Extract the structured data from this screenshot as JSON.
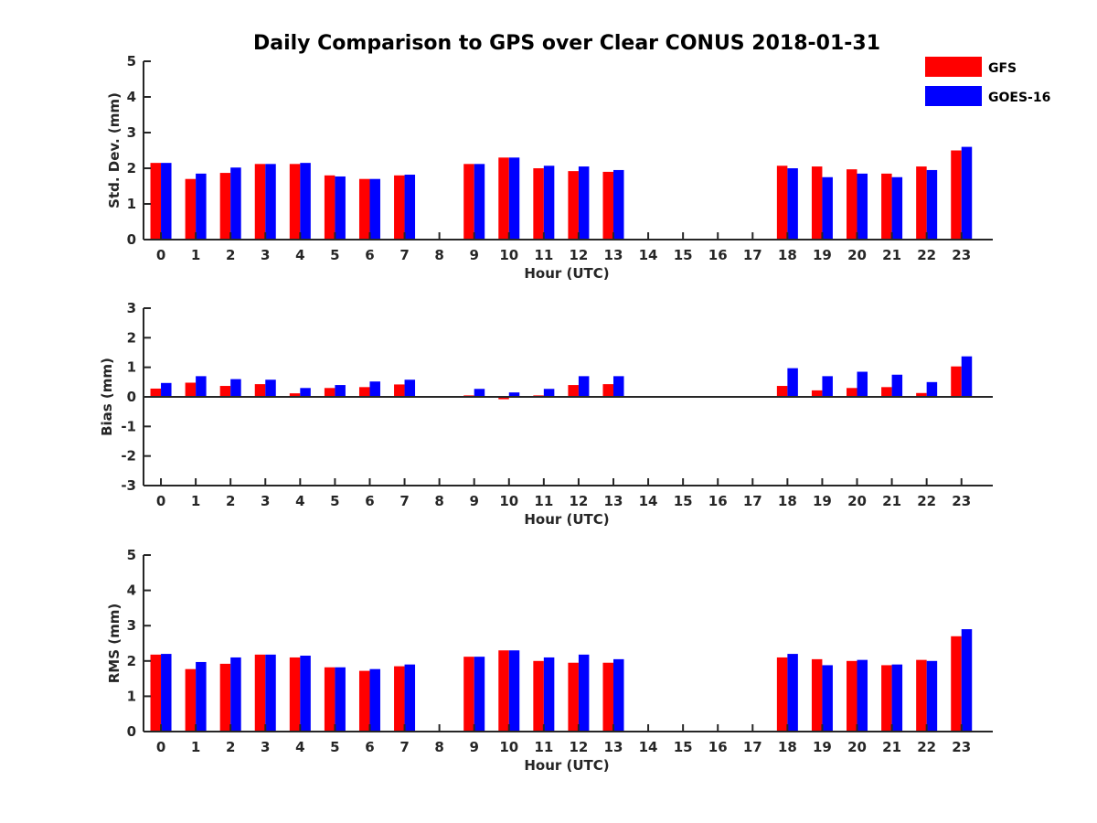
{
  "title": "Daily Comparison to GPS over Clear CONUS 2018-01-31",
  "colors": {
    "gfs": "#ff0000",
    "goes16": "#0000ff",
    "axis": "#262626"
  },
  "legend": {
    "position": "top-right",
    "items": [
      {
        "label": "GFS",
        "color": "#ff0000"
      },
      {
        "label": "GOES-16",
        "color": "#0000ff"
      }
    ]
  },
  "chart_data": [
    {
      "type": "bar",
      "title": "Daily Comparison to GPS over Clear CONUS 2018-01-31",
      "xlabel": "Hour (UTC)",
      "ylabel": "Std. Dev. (mm)",
      "ylim": [
        0,
        5
      ],
      "yticks": [
        "0",
        "1",
        "2",
        "3",
        "4",
        "5"
      ],
      "categories": [
        "0",
        "1",
        "2",
        "3",
        "4",
        "5",
        "6",
        "7",
        "8",
        "9",
        "10",
        "11",
        "12",
        "13",
        "14",
        "15",
        "16",
        "17",
        "18",
        "19",
        "20",
        "21",
        "22",
        "23"
      ],
      "series": [
        {
          "name": "GFS",
          "values": [
            2.15,
            1.7,
            1.87,
            2.12,
            2.12,
            1.8,
            1.7,
            1.8,
            null,
            2.12,
            2.3,
            2.0,
            1.92,
            1.9,
            null,
            null,
            null,
            null,
            2.07,
            2.05,
            1.97,
            1.85,
            2.05,
            2.5
          ]
        },
        {
          "name": "GOES-16",
          "values": [
            2.15,
            1.85,
            2.02,
            2.12,
            2.15,
            1.77,
            1.7,
            1.82,
            null,
            2.12,
            2.3,
            2.07,
            2.05,
            1.95,
            null,
            null,
            null,
            null,
            2.0,
            1.75,
            1.85,
            1.75,
            1.95,
            2.6
          ]
        }
      ]
    },
    {
      "type": "bar",
      "xlabel": "Hour (UTC)",
      "ylabel": "Bias (mm)",
      "ylim": [
        -3,
        3
      ],
      "yticks": [
        "-3",
        "-2",
        "-1",
        "0",
        "1",
        "2",
        "3"
      ],
      "categories": [
        "0",
        "1",
        "2",
        "3",
        "4",
        "5",
        "6",
        "7",
        "8",
        "9",
        "10",
        "11",
        "12",
        "13",
        "14",
        "15",
        "16",
        "17",
        "18",
        "19",
        "20",
        "21",
        "22",
        "23"
      ],
      "series": [
        {
          "name": "GFS",
          "values": [
            0.28,
            0.48,
            0.37,
            0.43,
            0.12,
            0.3,
            0.33,
            0.42,
            null,
            0.05,
            -0.08,
            0.05,
            0.4,
            0.43,
            null,
            null,
            null,
            null,
            0.37,
            0.22,
            0.3,
            0.33,
            0.13,
            1.03
          ]
        },
        {
          "name": "GOES-16",
          "values": [
            0.47,
            0.7,
            0.6,
            0.58,
            0.3,
            0.4,
            0.52,
            0.58,
            null,
            0.27,
            0.15,
            0.27,
            0.7,
            0.7,
            null,
            null,
            null,
            null,
            0.97,
            0.7,
            0.85,
            0.75,
            0.5,
            1.37
          ]
        }
      ]
    },
    {
      "type": "bar",
      "xlabel": "Hour (UTC)",
      "ylabel": "RMS (mm)",
      "ylim": [
        0,
        5
      ],
      "yticks": [
        "0",
        "1",
        "2",
        "3",
        "4",
        "5"
      ],
      "categories": [
        "0",
        "1",
        "2",
        "3",
        "4",
        "5",
        "6",
        "7",
        "8",
        "9",
        "10",
        "11",
        "12",
        "13",
        "14",
        "15",
        "16",
        "17",
        "18",
        "19",
        "20",
        "21",
        "22",
        "23"
      ],
      "series": [
        {
          "name": "GFS",
          "values": [
            2.18,
            1.77,
            1.92,
            2.18,
            2.1,
            1.82,
            1.72,
            1.85,
            null,
            2.12,
            2.3,
            2.0,
            1.95,
            1.95,
            null,
            null,
            null,
            null,
            2.1,
            2.05,
            2.0,
            1.88,
            2.03,
            2.7
          ]
        },
        {
          "name": "GOES-16",
          "values": [
            2.2,
            1.97,
            2.1,
            2.18,
            2.15,
            1.82,
            1.77,
            1.9,
            null,
            2.12,
            2.3,
            2.1,
            2.18,
            2.05,
            null,
            null,
            null,
            null,
            2.2,
            1.88,
            2.03,
            1.9,
            2.0,
            2.9
          ]
        }
      ]
    }
  ]
}
